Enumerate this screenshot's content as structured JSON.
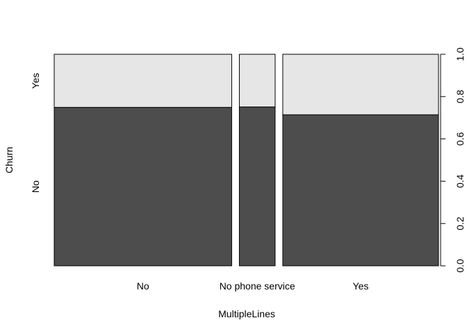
{
  "chart_data": {
    "type": "spineplot",
    "title": "",
    "xlabel": "MultipleLines",
    "ylabel": "Churn",
    "x_categories": [
      "No",
      "No phone service",
      "Yes"
    ],
    "x_widths": [
      0.481,
      0.097,
      0.422
    ],
    "y_levels": [
      "No",
      "Yes"
    ],
    "series": [
      {
        "name": "No",
        "values": [
          0.749,
          0.751,
          0.714
        ]
      },
      {
        "name": "Yes",
        "values": [
          0.251,
          0.249,
          0.286
        ]
      }
    ],
    "ylim": [
      0,
      1
    ],
    "right_axis_ticks": [
      "0.0",
      "0.2",
      "0.4",
      "0.6",
      "0.8",
      "1.0"
    ],
    "colors": {
      "No": "#4d4d4d",
      "Yes": "#e6e6e6",
      "stroke": "#000000"
    }
  }
}
